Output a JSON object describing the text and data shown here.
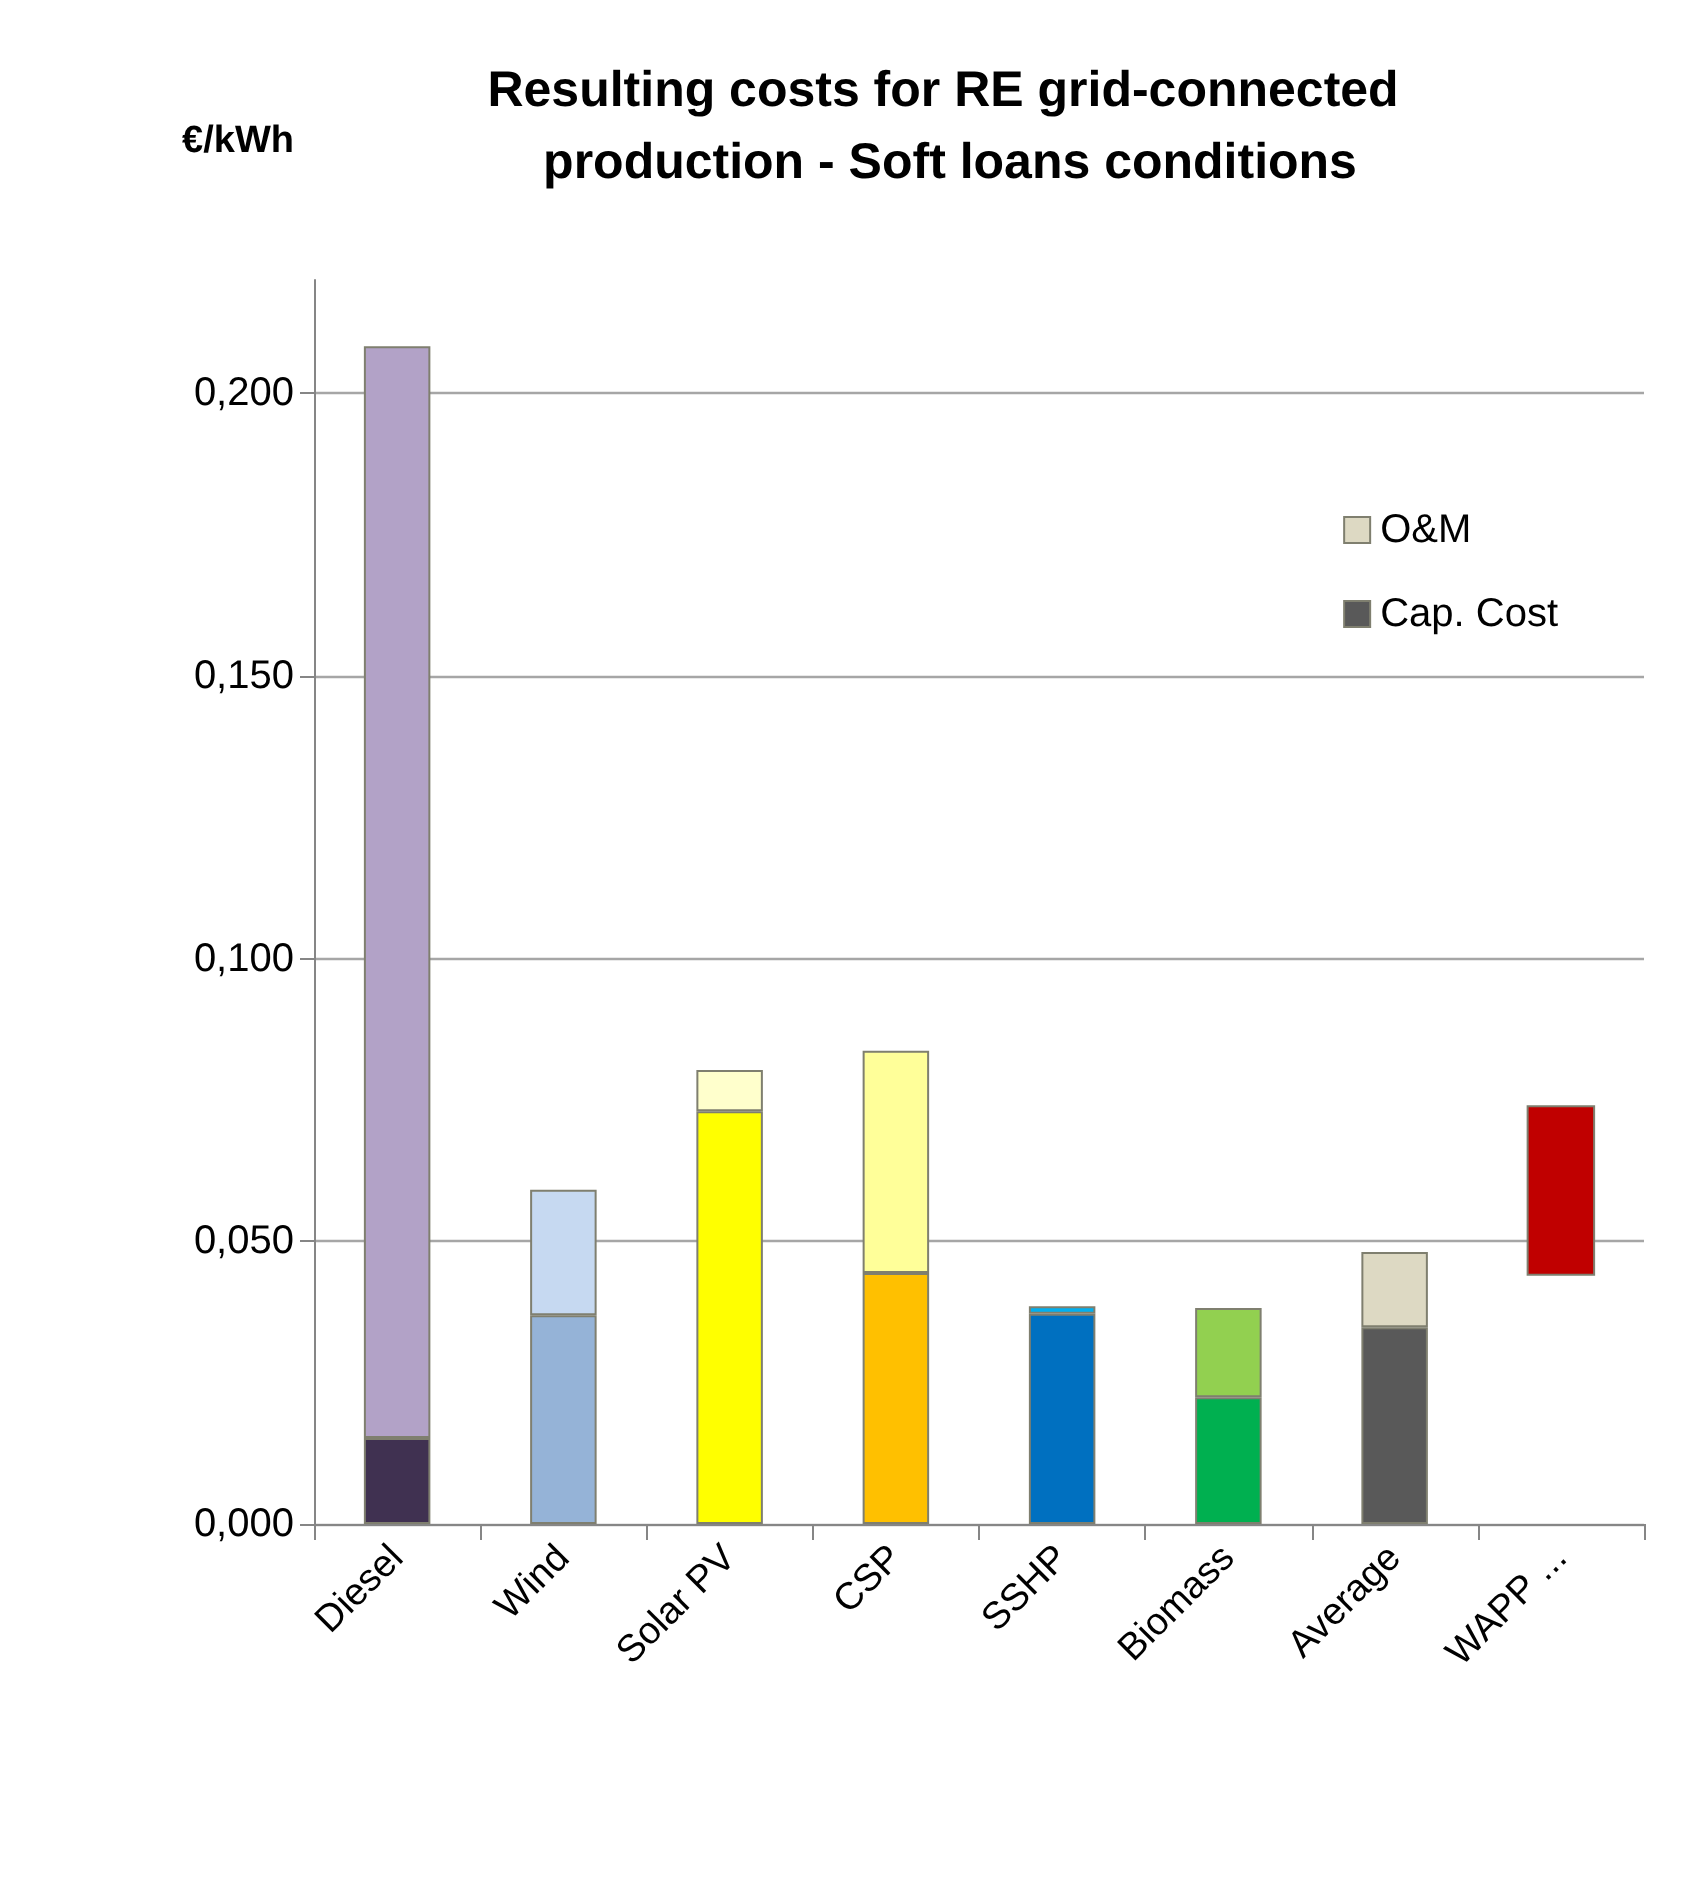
{
  "chart_data": {
    "type": "bar",
    "title": "Resulting costs for RE grid-connected production - Soft loans conditions",
    "ylabel": "€/kWh",
    "categories": [
      "Diesel",
      "Wind",
      "Solar PV",
      "CSP",
      "SSHP",
      "Biomass",
      "Average",
      "WAPP ..."
    ],
    "stacked": true,
    "series": [
      {
        "name": "Cap. Cost",
        "color": "#595959",
        "colors": [
          "#403151",
          "#95b3d7",
          "#ffff00",
          "#ffc000",
          "#0070c0",
          "#00b050",
          "#595959",
          null
        ],
        "values": [
          0.0152,
          0.0369,
          0.073,
          0.0444,
          0.0372,
          0.0224,
          0.0348,
          null
        ]
      },
      {
        "name": "O&M",
        "color": "#ddd9c3",
        "colors": [
          "#b2a2c7",
          "#c6d9f1",
          "#ffffcc",
          "#ffff99",
          "#00b0f0",
          "#92d050",
          "#ddd9c3",
          null
        ],
        "values": [
          0.1931,
          0.0222,
          0.0073,
          0.0393,
          0.0013,
          0.0158,
          0.0133,
          null
        ]
      },
      {
        "color": "#c00000",
        "base": [
          null,
          null,
          null,
          null,
          null,
          null,
          null,
          0.0441
        ],
        "values": [
          null,
          null,
          null,
          null,
          null,
          null,
          null,
          0.0298
        ]
      }
    ],
    "ylim": [
      0,
      0.22
    ],
    "yticks": [
      {
        "value": 0,
        "label": "0,000"
      },
      {
        "value": 0.05,
        "label": "0,050"
      },
      {
        "value": 0.1,
        "label": "0,100"
      },
      {
        "value": 0.15,
        "label": "0,150"
      },
      {
        "value": 0.2,
        "label": "0,200"
      }
    ],
    "grid": "y",
    "legend": "top right"
  }
}
